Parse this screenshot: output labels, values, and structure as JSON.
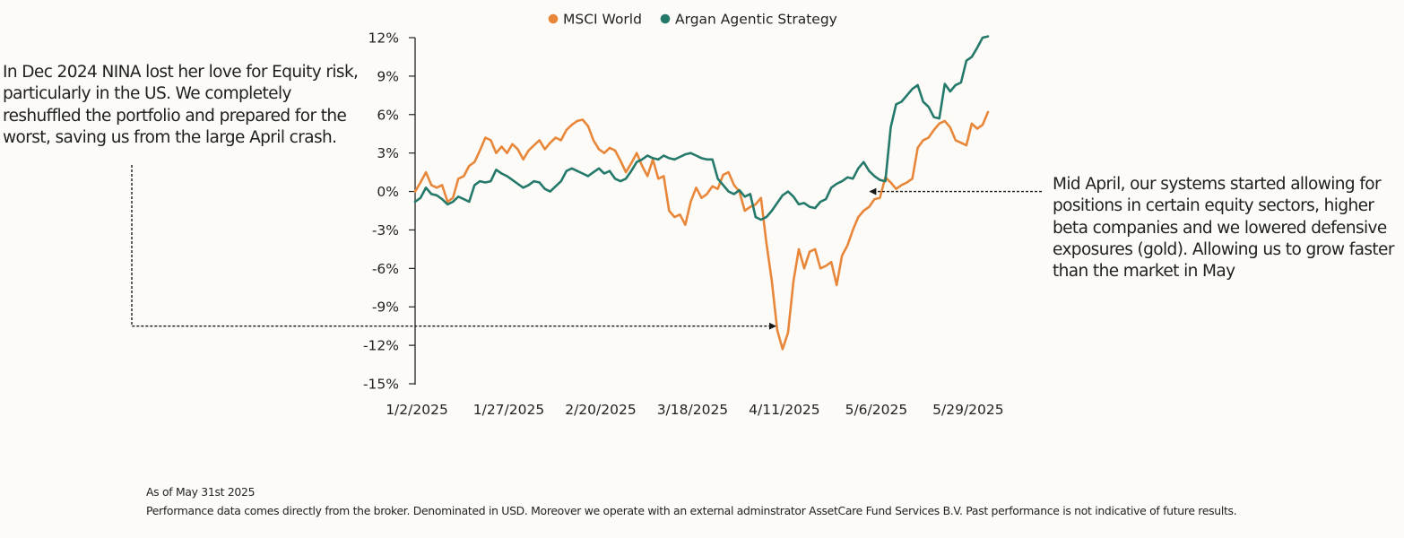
{
  "chart_data": {
    "type": "line",
    "title": "",
    "xlabel": "",
    "ylabel": "",
    "y_unit": "%",
    "ylim": [
      -15,
      12
    ],
    "yticks": [
      12,
      9,
      6,
      3,
      0,
      -3,
      -6,
      -9,
      -12,
      -15
    ],
    "ytick_labels": [
      "12%",
      "9%",
      "6%",
      "3%",
      "0%",
      "-3%",
      "-6%",
      "-9%",
      "-12%",
      "-15%"
    ],
    "xtick_labels": [
      "1/2/2025",
      "1/27/2025",
      "2/20/2025",
      "3/18/2025",
      "4/11/2025",
      "5/6/2025",
      "5/29/2025"
    ],
    "xtick_index": [
      0,
      17,
      34,
      51,
      68,
      85,
      102
    ],
    "num_points": 107,
    "legend_position": "top",
    "grid": false,
    "series": [
      {
        "name": "MSCI World",
        "color": "#e8873a",
        "values": [
          0.0,
          0.7,
          1.5,
          0.5,
          0.3,
          0.5,
          -0.8,
          -0.5,
          1.0,
          1.2,
          2.0,
          2.3,
          3.2,
          4.2,
          4.0,
          3.0,
          3.5,
          3.0,
          3.7,
          3.3,
          2.5,
          3.2,
          3.6,
          4.0,
          3.3,
          3.8,
          4.2,
          4.0,
          4.8,
          5.2,
          5.5,
          5.6,
          5.1,
          4.0,
          3.3,
          3.0,
          3.4,
          3.2,
          2.4,
          1.5,
          2.2,
          3.0,
          2.0,
          1.2,
          2.5,
          1.0,
          1.2,
          -1.5,
          -2.0,
          -1.8,
          -2.6,
          -0.8,
          0.3,
          -0.5,
          -0.2,
          0.4,
          0.2,
          1.3,
          1.5,
          0.5,
          0.0,
          -1.5,
          -1.2,
          -1.0,
          -0.5,
          -4.0,
          -7.0,
          -10.8,
          -12.3,
          -11.0,
          -7.0,
          -4.5,
          -6.0,
          -4.7,
          -4.5,
          -6.0,
          -5.8,
          -5.5,
          -7.3,
          -5.0,
          -4.2,
          -3.0,
          -2.0,
          -1.5,
          -1.2,
          -0.6,
          -0.5,
          1.1,
          0.7,
          0.2,
          0.5,
          0.7,
          1.0,
          3.4,
          4.0,
          4.2,
          4.8,
          5.3,
          5.5,
          5.0,
          4.0,
          3.8,
          3.6,
          5.3,
          4.9,
          5.2,
          6.2
        ]
      },
      {
        "name": "Argan Agentic Strategy",
        "color": "#24796a",
        "values": [
          -0.8,
          -0.5,
          0.3,
          -0.2,
          -0.3,
          -0.6,
          -1.0,
          -0.8,
          -0.4,
          -0.6,
          -0.8,
          0.5,
          0.8,
          0.7,
          0.8,
          1.7,
          1.4,
          1.2,
          0.9,
          0.6,
          0.3,
          0.5,
          0.8,
          0.7,
          0.2,
          0.0,
          0.4,
          0.8,
          1.6,
          1.8,
          1.6,
          1.4,
          1.2,
          1.5,
          1.8,
          1.4,
          1.6,
          1.0,
          0.8,
          1.0,
          1.6,
          2.3,
          2.5,
          2.8,
          2.6,
          2.5,
          2.8,
          2.6,
          2.5,
          2.7,
          2.9,
          3.0,
          2.8,
          2.6,
          2.5,
          2.5,
          1.0,
          0.5,
          0.0,
          -0.2,
          0.1,
          -0.4,
          -0.2,
          -2.0,
          -2.2,
          -2.0,
          -1.5,
          -0.9,
          -0.3,
          0.0,
          -0.4,
          -1.0,
          -0.9,
          -1.2,
          -1.3,
          -0.8,
          -0.6,
          0.3,
          0.6,
          0.8,
          1.1,
          1.0,
          1.8,
          2.3,
          1.6,
          1.2,
          0.9,
          0.8,
          5.0,
          6.8,
          7.0,
          7.5,
          8.0,
          8.3,
          7.0,
          6.6,
          5.8,
          5.7,
          8.4,
          7.8,
          8.3,
          8.5,
          10.2,
          10.5,
          11.2,
          12.0,
          12.1
        ]
      }
    ],
    "annotations": [
      {
        "id": "dec-2024",
        "text": "In Dec 2024 NINA lost her love for Equity risk, particularly in the US. We completely reshuffled the portfolio and prepared for the worst, saving us from the large April crash.",
        "target_index": 67,
        "target_value": -10.5
      },
      {
        "id": "mid-april",
        "text": "Mid April, our systems started allowing for positions in certain equity sectors, higher beta companies and we lowered defensive exposures (gold).  Allowing us to grow faster than the market in May",
        "target_index": 84,
        "target_value": 0.0
      }
    ]
  },
  "footer": {
    "as_of": "As of  May 31st 2025",
    "disclaimer": "Performance data comes directly from the broker. Denominated in USD. Moreover we operate with an external adminstrator AssetCare Fund Services B.V.  Past performance is not indicative of future results."
  }
}
